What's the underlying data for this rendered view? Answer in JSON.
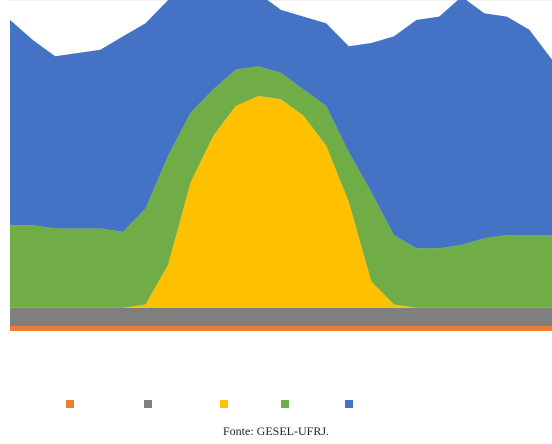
{
  "source_note": "Fonte: GESEL-UFRJ.",
  "chart_data": {
    "type": "area",
    "stacked": true,
    "title": "",
    "xlabel": "",
    "ylabel": "",
    "ylim": [
      0,
      100
    ],
    "grid": true,
    "legend_position": "bottom",
    "x": [
      0,
      1,
      2,
      3,
      4,
      5,
      6,
      7,
      8,
      9,
      10,
      11,
      12,
      13,
      14,
      15,
      16,
      17,
      18,
      19,
      20,
      21,
      22,
      23,
      24
    ],
    "series": [
      {
        "color": "#ED7D31",
        "values": [
          1.5,
          1.5,
          1.5,
          1.5,
          1.5,
          1.5,
          1.5,
          1.5,
          1.5,
          1.5,
          1.5,
          1.5,
          1.5,
          1.5,
          1.5,
          1.5,
          1.5,
          1.5,
          1.5,
          1.5,
          1.5,
          1.5,
          1.5,
          1.5,
          1.5
        ]
      },
      {
        "color": "#7F7F7F",
        "values": [
          5.5,
          5.5,
          5.5,
          5.5,
          5.5,
          5.5,
          5.5,
          5.5,
          5.5,
          5.5,
          5.5,
          5.5,
          5.5,
          5.5,
          5.5,
          5.5,
          5.5,
          5.5,
          5.5,
          5.5,
          5.5,
          5.5,
          5.5,
          5.5,
          5.5
        ]
      },
      {
        "color": "#FFC000",
        "values": [
          0,
          0,
          0,
          0,
          0,
          0,
          1,
          13,
          38,
          52,
          61,
          64,
          63,
          58,
          49,
          32,
          8,
          1,
          0,
          0,
          0,
          0,
          0,
          0,
          0
        ]
      },
      {
        "color": "#70AD47",
        "values": [
          25,
          25,
          24,
          24,
          24,
          23,
          29,
          33,
          21,
          14,
          11,
          9,
          8,
          8,
          12,
          15,
          27,
          21,
          18,
          18,
          19,
          21,
          22,
          22,
          22
        ]
      },
      {
        "color": "#4472C4",
        "values": [
          62,
          56,
          52,
          53,
          54,
          59,
          56,
          47,
          35,
          29,
          25,
          22,
          19,
          22,
          25,
          32,
          45,
          60,
          69,
          70,
          75,
          68,
          66,
          62,
          53
        ]
      }
    ]
  }
}
